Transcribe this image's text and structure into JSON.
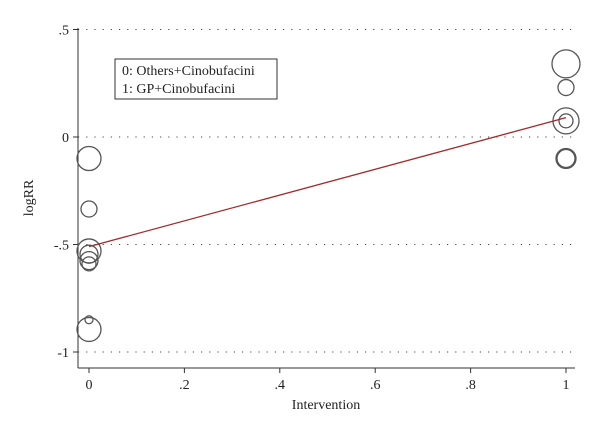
{
  "chart_data": {
    "type": "scatter",
    "title": "",
    "xlabel": "Intervention",
    "ylabel": "logRR",
    "xlim": [
      -0.02,
      1.02
    ],
    "ylim": [
      -1.04,
      0.5
    ],
    "x_ticks": [
      0,
      0.2,
      0.4,
      0.6,
      0.8,
      1
    ],
    "x_tick_labels": [
      "0",
      ".2",
      ".4",
      ".6",
      ".8",
      "1"
    ],
    "y_ticks": [
      -1,
      -0.5,
      0,
      0.5
    ],
    "y_tick_labels": [
      "-1",
      "-.5",
      "0",
      ".5"
    ],
    "grid": "dotted horizontal at y ticks",
    "legend": {
      "placement": "top-left",
      "entries": [
        "0: Others+Cinobufacini",
        "1: GP+Cinobufacini"
      ]
    },
    "points": [
      {
        "x": 0,
        "y": -0.1,
        "size": 12
      },
      {
        "x": 0,
        "y": -0.335,
        "size": 8
      },
      {
        "x": 0,
        "y": -0.53,
        "size": 12
      },
      {
        "x": 0,
        "y": -0.545,
        "size": 9
      },
      {
        "x": 0,
        "y": -0.575,
        "size": 9
      },
      {
        "x": 0,
        "y": -0.59,
        "size": 7
      },
      {
        "x": 0,
        "y": -0.85,
        "size": 4
      },
      {
        "x": 0,
        "y": -0.895,
        "size": 12
      },
      {
        "x": 1,
        "y": 0.34,
        "size": 14
      },
      {
        "x": 1,
        "y": 0.23,
        "size": 8
      },
      {
        "x": 1,
        "y": 0.075,
        "size": 13
      },
      {
        "x": 1,
        "y": 0.075,
        "size": 7
      },
      {
        "x": 1,
        "y": -0.1,
        "size": 10
      },
      {
        "x": 1,
        "y": -0.1,
        "size": 9
      }
    ],
    "fit_line": {
      "x": [
        0,
        1
      ],
      "y": [
        -0.51,
        0.09
      ],
      "color": "#a52a2a"
    },
    "marker_color": "#555555"
  }
}
